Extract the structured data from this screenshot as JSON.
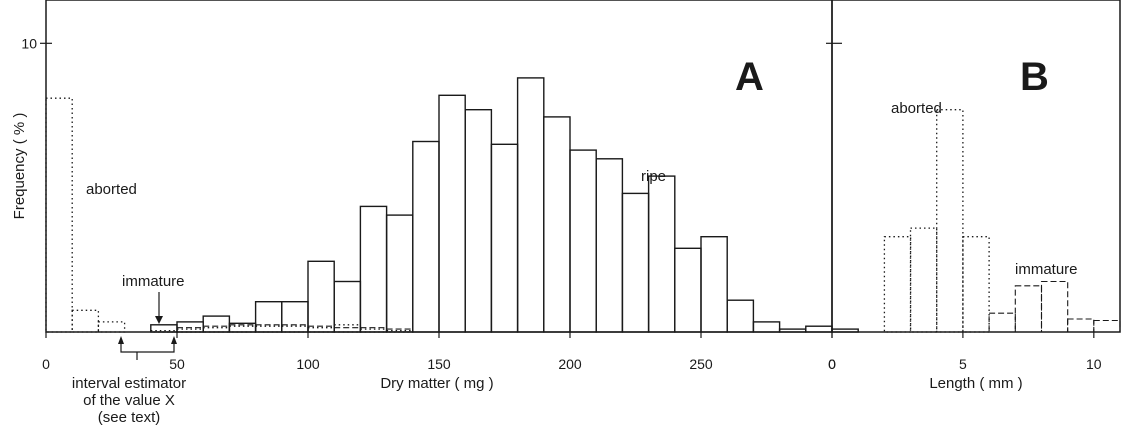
{
  "chart_data": [
    {
      "type": "bar",
      "panel_label": "A",
      "xlabel": "Dry matter ( mg )",
      "ylabel": "Frequency ( % )",
      "xlim": [
        0,
        300
      ],
      "ylim": [
        0,
        11.5
      ],
      "x_ticks": [
        "0",
        "50",
        "100",
        "150",
        "200",
        "250",
        "0"
      ],
      "y_ticks": [
        "10"
      ],
      "bin_width": 10,
      "series": [
        {
          "name": "ripe",
          "style": "solid",
          "bins": [
            {
              "x": 40,
              "y": 0.25
            },
            {
              "x": 50,
              "y": 0.35
            },
            {
              "x": 60,
              "y": 0.55
            },
            {
              "x": 70,
              "y": 0.3
            },
            {
              "x": 80,
              "y": 1.05
            },
            {
              "x": 90,
              "y": 1.05
            },
            {
              "x": 100,
              "y": 2.45
            },
            {
              "x": 110,
              "y": 1.75
            },
            {
              "x": 120,
              "y": 4.35
            },
            {
              "x": 130,
              "y": 4.05
            },
            {
              "x": 140,
              "y": 6.6
            },
            {
              "x": 150,
              "y": 8.2
            },
            {
              "x": 160,
              "y": 7.7
            },
            {
              "x": 170,
              "y": 6.5
            },
            {
              "x": 180,
              "y": 8.8
            },
            {
              "x": 190,
              "y": 7.45
            },
            {
              "x": 200,
              "y": 6.3
            },
            {
              "x": 210,
              "y": 6.0
            },
            {
              "x": 220,
              "y": 4.8
            },
            {
              "x": 230,
              "y": 5.4
            },
            {
              "x": 240,
              "y": 2.9
            },
            {
              "x": 250,
              "y": 3.3
            },
            {
              "x": 260,
              "y": 1.1
            },
            {
              "x": 270,
              "y": 0.35
            },
            {
              "x": 280,
              "y": 0.1
            },
            {
              "x": 290,
              "y": 0.2
            },
            {
              "x": 300,
              "y": 0.1
            }
          ]
        },
        {
          "name": "aborted",
          "style": "dotted",
          "bins": [
            {
              "x": 0,
              "y": 8.1
            },
            {
              "x": 10,
              "y": 0.75
            },
            {
              "x": 20,
              "y": 0.35
            },
            {
              "x": 30,
              "y": 0
            },
            {
              "x": 40,
              "y": 0.05
            },
            {
              "x": 50,
              "y": 0.1
            },
            {
              "x": 60,
              "y": 0.15
            },
            {
              "x": 70,
              "y": 0.2
            },
            {
              "x": 80,
              "y": 0.2
            },
            {
              "x": 90,
              "y": 0.2
            },
            {
              "x": 100,
              "y": 0.15
            },
            {
              "x": 110,
              "y": 0.25
            },
            {
              "x": 120,
              "y": 0.1
            },
            {
              "x": 130,
              "y": 0.05
            }
          ]
        },
        {
          "name": "immature",
          "style": "dashed",
          "bins": [
            {
              "x": 50,
              "y": 0.15
            },
            {
              "x": 60,
              "y": 0.2
            },
            {
              "x": 70,
              "y": 0.25
            },
            {
              "x": 80,
              "y": 0.25
            },
            {
              "x": 90,
              "y": 0.25
            },
            {
              "x": 100,
              "y": 0.2
            },
            {
              "x": 110,
              "y": 0.15
            },
            {
              "x": 120,
              "y": 0.15
            },
            {
              "x": 130,
              "y": 0.1
            }
          ]
        }
      ],
      "annotations": {
        "ripe": "ripe",
        "aborted": "aborted",
        "immature": "immature",
        "interval_estimator": [
          "interval estimator",
          "of the value X",
          "(see text)"
        ]
      }
    },
    {
      "type": "bar",
      "panel_label": "B",
      "xlabel": "Length ( mm )",
      "ylabel": "",
      "xlim": [
        0,
        11
      ],
      "ylim": [
        0,
        11.5
      ],
      "x_ticks": [
        "0",
        "5",
        "10"
      ],
      "bin_width": 1,
      "series": [
        {
          "name": "aborted",
          "style": "dotted",
          "bins": [
            {
              "x": 2,
              "y": 3.3
            },
            {
              "x": 3,
              "y": 3.6
            },
            {
              "x": 4,
              "y": 7.7
            },
            {
              "x": 5,
              "y": 3.3
            }
          ]
        },
        {
          "name": "immature",
          "style": "dashed",
          "bins": [
            {
              "x": 6,
              "y": 0.65
            },
            {
              "x": 7,
              "y": 1.6
            },
            {
              "x": 8,
              "y": 1.75
            },
            {
              "x": 9,
              "y": 0.45
            },
            {
              "x": 10,
              "y": 0.4
            }
          ]
        }
      ],
      "annotations": {
        "aborted": "aborted",
        "immature": "immature"
      }
    }
  ]
}
